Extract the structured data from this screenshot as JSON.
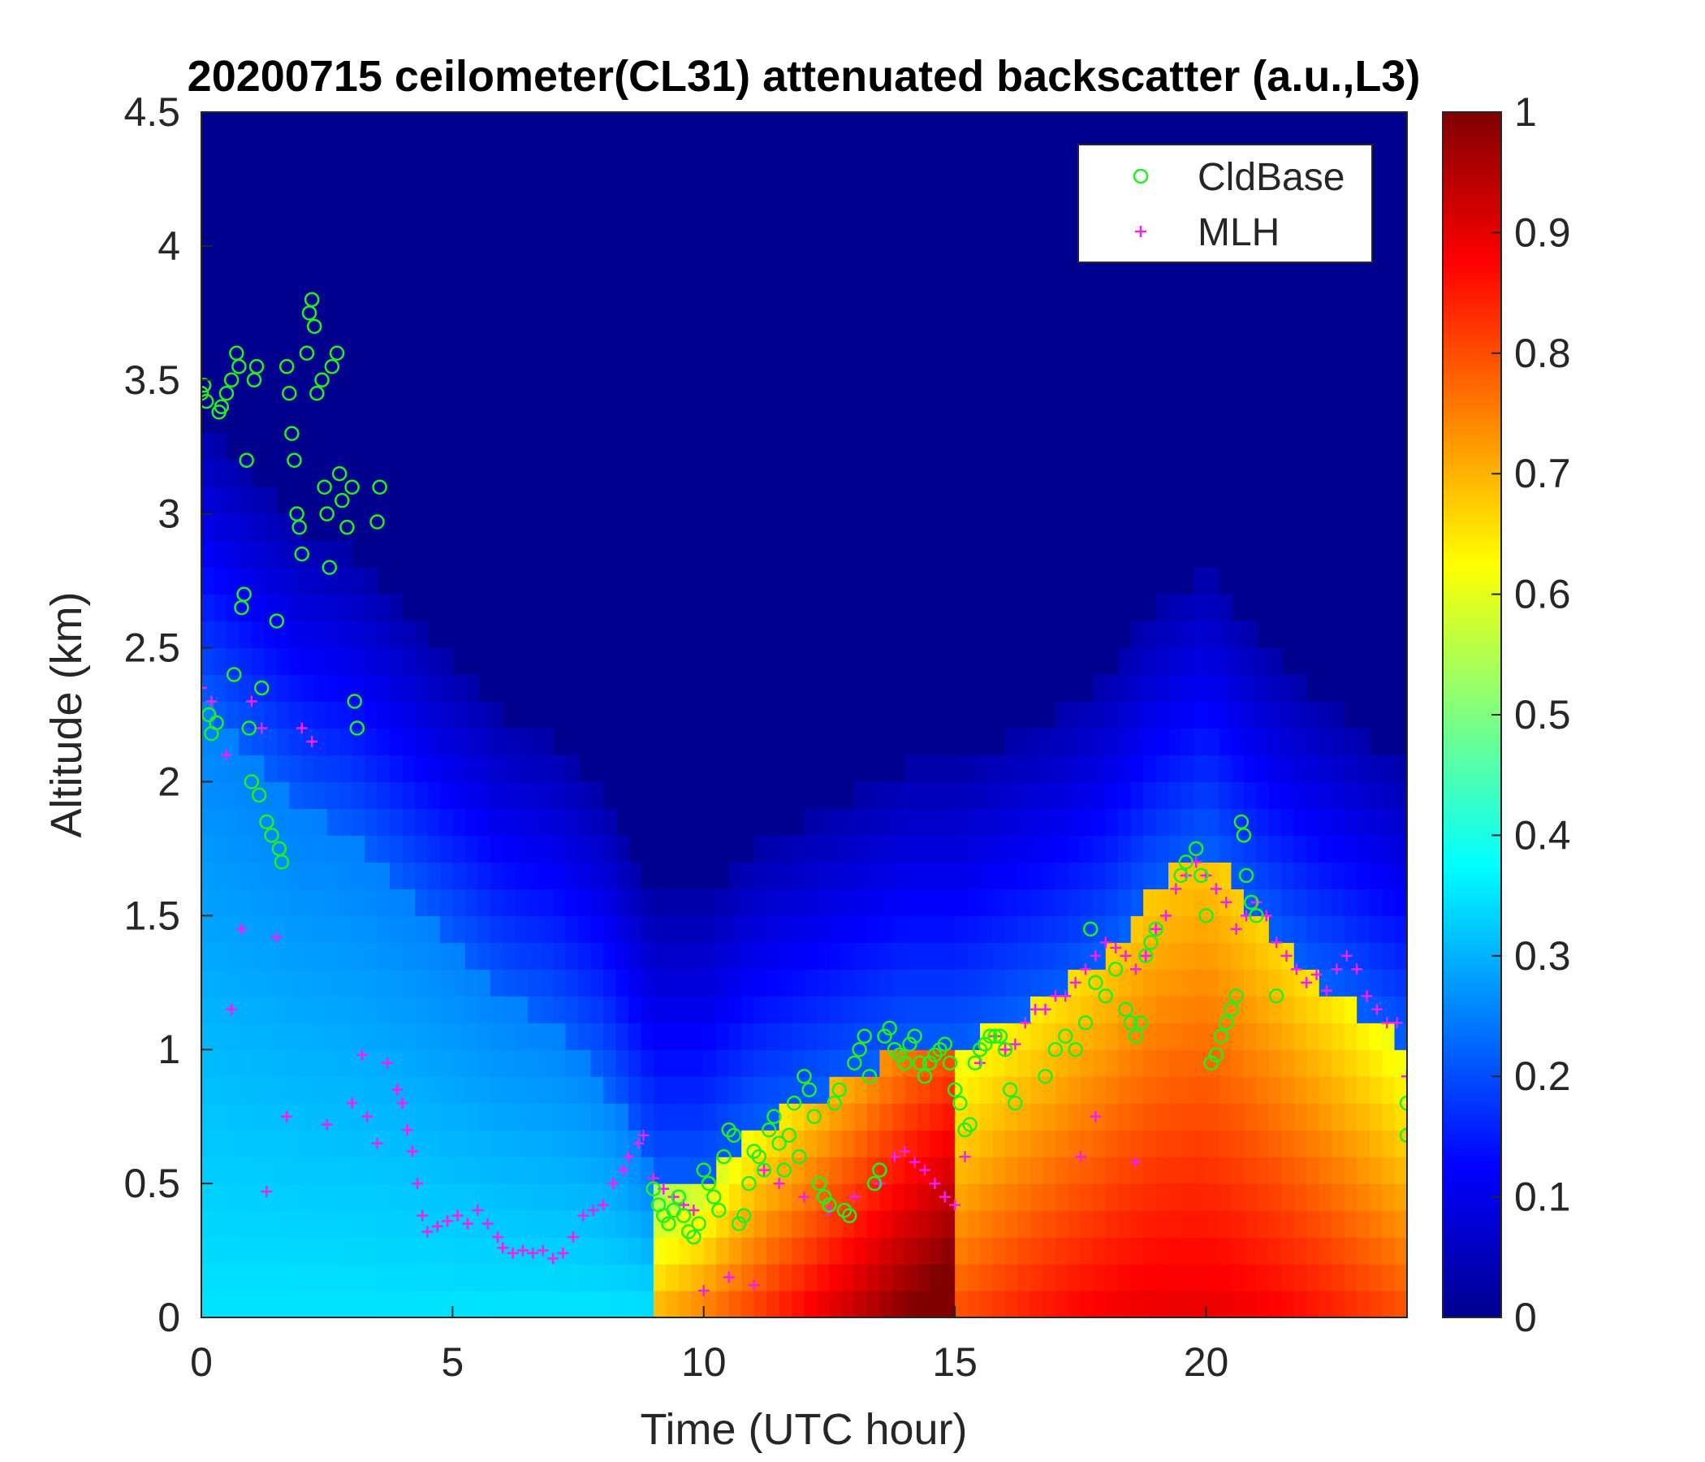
{
  "chart_data": {
    "type": "heatmap",
    "title": "20200715 ceilometer(CL31) attenuated backscatter (a.u.,L3)",
    "xlabel": "Time (UTC hour)",
    "ylabel": "Altitude (km)",
    "xlim": [
      0,
      24
    ],
    "ylim": [
      0,
      4.5
    ],
    "xticks": [
      0,
      5,
      10,
      15,
      20
    ],
    "yticks": [
      0,
      0.5,
      1,
      1.5,
      2,
      2.5,
      3,
      3.5,
      4,
      4.5
    ],
    "colorbar": {
      "colormap": "jet",
      "clim": [
        0,
        1
      ],
      "ticks": [
        0,
        0.1,
        0.2,
        0.3,
        0.4,
        0.5,
        0.6,
        0.7,
        0.8,
        0.9,
        1
      ]
    },
    "legend": {
      "placement": "top-right",
      "entries": [
        {
          "label": "CldBase",
          "marker": "circle",
          "color": "#22ee22"
        },
        {
          "label": "MLH",
          "marker": "plus",
          "color": "#ee22ee"
        }
      ]
    },
    "grid": false,
    "backscatter_profile_summary": {
      "layer_top_km_by_hour": [
        [
          0,
          2.3
        ],
        [
          1,
          2.1
        ],
        [
          2,
          1.9
        ],
        [
          3,
          1.8
        ],
        [
          4,
          1.6
        ],
        [
          5,
          1.4
        ],
        [
          6,
          1.2
        ],
        [
          7,
          1.1
        ],
        [
          8,
          0.9
        ],
        [
          9,
          0.5
        ],
        [
          10,
          0.5
        ],
        [
          11,
          0.7
        ],
        [
          12,
          0.8
        ],
        [
          13,
          0.9
        ],
        [
          14,
          1.0
        ],
        [
          15,
          1.0
        ],
        [
          16,
          1.1
        ],
        [
          17,
          1.2
        ],
        [
          18,
          1.35
        ],
        [
          19,
          1.6
        ],
        [
          20,
          1.75
        ],
        [
          21,
          1.5
        ],
        [
          22,
          1.3
        ],
        [
          23,
          1.15
        ],
        [
          24,
          1.0
        ]
      ]
    },
    "series": [
      {
        "name": "CldBase",
        "points": [
          [
            0.0,
            3.45
          ],
          [
            0.05,
            3.48
          ],
          [
            0.1,
            3.42
          ],
          [
            0.15,
            2.25
          ],
          [
            0.2,
            2.18
          ],
          [
            0.3,
            2.22
          ],
          [
            0.35,
            3.38
          ],
          [
            0.4,
            3.4
          ],
          [
            0.5,
            3.45
          ],
          [
            0.6,
            3.5
          ],
          [
            0.65,
            2.4
          ],
          [
            0.7,
            3.6
          ],
          [
            0.75,
            3.55
          ],
          [
            0.8,
            2.65
          ],
          [
            0.85,
            2.7
          ],
          [
            0.9,
            3.2
          ],
          [
            0.95,
            2.2
          ],
          [
            1.0,
            2.0
          ],
          [
            1.05,
            3.5
          ],
          [
            1.1,
            3.55
          ],
          [
            1.15,
            1.95
          ],
          [
            1.2,
            2.35
          ],
          [
            1.3,
            1.85
          ],
          [
            1.4,
            1.8
          ],
          [
            1.5,
            2.6
          ],
          [
            1.55,
            1.75
          ],
          [
            1.6,
            1.7
          ],
          [
            1.7,
            3.55
          ],
          [
            1.75,
            3.45
          ],
          [
            1.8,
            3.3
          ],
          [
            1.85,
            3.2
          ],
          [
            1.9,
            3.0
          ],
          [
            1.95,
            2.95
          ],
          [
            2.0,
            2.85
          ],
          [
            2.1,
            3.6
          ],
          [
            2.15,
            3.75
          ],
          [
            2.2,
            3.8
          ],
          [
            2.25,
            3.7
          ],
          [
            2.3,
            3.45
          ],
          [
            2.4,
            3.5
          ],
          [
            2.45,
            3.1
          ],
          [
            2.5,
            3.0
          ],
          [
            2.55,
            2.8
          ],
          [
            2.6,
            3.55
          ],
          [
            2.7,
            3.6
          ],
          [
            2.75,
            3.15
          ],
          [
            2.8,
            3.05
          ],
          [
            2.9,
            2.95
          ],
          [
            3.0,
            3.1
          ],
          [
            3.05,
            2.3
          ],
          [
            3.1,
            2.2
          ],
          [
            3.5,
            2.97
          ],
          [
            3.55,
            3.1
          ],
          [
            9.0,
            0.48
          ],
          [
            9.1,
            0.42
          ],
          [
            9.2,
            0.38
          ],
          [
            9.3,
            0.35
          ],
          [
            9.4,
            0.4
          ],
          [
            9.5,
            0.45
          ],
          [
            9.6,
            0.38
          ],
          [
            9.7,
            0.32
          ],
          [
            9.8,
            0.3
          ],
          [
            9.9,
            0.35
          ],
          [
            10.0,
            0.55
          ],
          [
            10.1,
            0.5
          ],
          [
            10.2,
            0.45
          ],
          [
            10.3,
            0.4
          ],
          [
            10.4,
            0.6
          ],
          [
            10.5,
            0.7
          ],
          [
            10.6,
            0.68
          ],
          [
            10.7,
            0.35
          ],
          [
            10.8,
            0.38
          ],
          [
            10.9,
            0.5
          ],
          [
            11.0,
            0.62
          ],
          [
            11.1,
            0.6
          ],
          [
            11.2,
            0.55
          ],
          [
            11.3,
            0.7
          ],
          [
            11.4,
            0.75
          ],
          [
            11.5,
            0.65
          ],
          [
            11.6,
            0.55
          ],
          [
            11.7,
            0.68
          ],
          [
            11.8,
            0.8
          ],
          [
            11.9,
            0.6
          ],
          [
            12.0,
            0.9
          ],
          [
            12.1,
            0.85
          ],
          [
            12.2,
            0.75
          ],
          [
            12.3,
            0.5
          ],
          [
            12.4,
            0.45
          ],
          [
            12.5,
            0.42
          ],
          [
            12.6,
            0.8
          ],
          [
            12.7,
            0.85
          ],
          [
            12.8,
            0.4
          ],
          [
            12.9,
            0.38
          ],
          [
            13.0,
            0.95
          ],
          [
            13.1,
            1.0
          ],
          [
            13.2,
            1.05
          ],
          [
            13.3,
            0.9
          ],
          [
            13.4,
            0.5
          ],
          [
            13.5,
            0.55
          ],
          [
            13.6,
            1.05
          ],
          [
            13.7,
            1.08
          ],
          [
            13.8,
            1.0
          ],
          [
            13.9,
            0.98
          ],
          [
            14.0,
            0.95
          ],
          [
            14.1,
            1.02
          ],
          [
            14.2,
            1.05
          ],
          [
            14.3,
            0.95
          ],
          [
            14.4,
            0.9
          ],
          [
            14.5,
            0.95
          ],
          [
            14.6,
            0.98
          ],
          [
            14.7,
            1.0
          ],
          [
            14.8,
            1.02
          ],
          [
            14.9,
            0.95
          ],
          [
            15.0,
            0.85
          ],
          [
            15.1,
            0.8
          ],
          [
            15.2,
            0.7
          ],
          [
            15.3,
            0.72
          ],
          [
            15.4,
            0.95
          ],
          [
            15.5,
            1.0
          ],
          [
            15.6,
            1.02
          ],
          [
            15.7,
            1.05
          ],
          [
            15.8,
            1.05
          ],
          [
            15.9,
            1.05
          ],
          [
            16.0,
            1.0
          ],
          [
            16.1,
            0.85
          ],
          [
            16.2,
            0.8
          ],
          [
            16.8,
            0.9
          ],
          [
            17.0,
            1.0
          ],
          [
            17.2,
            1.05
          ],
          [
            17.4,
            1.0
          ],
          [
            17.6,
            1.1
          ],
          [
            17.7,
            1.45
          ],
          [
            17.8,
            1.25
          ],
          [
            18.0,
            1.2
          ],
          [
            18.2,
            1.3
          ],
          [
            18.4,
            1.15
          ],
          [
            18.5,
            1.1
          ],
          [
            18.6,
            1.05
          ],
          [
            18.7,
            1.1
          ],
          [
            18.8,
            1.35
          ],
          [
            18.9,
            1.4
          ],
          [
            19.0,
            1.45
          ],
          [
            19.5,
            1.65
          ],
          [
            19.6,
            1.7
          ],
          [
            19.8,
            1.75
          ],
          [
            19.9,
            1.65
          ],
          [
            20.0,
            1.5
          ],
          [
            20.1,
            0.95
          ],
          [
            20.2,
            0.98
          ],
          [
            20.3,
            1.05
          ],
          [
            20.4,
            1.1
          ],
          [
            20.5,
            1.15
          ],
          [
            20.6,
            1.2
          ],
          [
            20.7,
            1.85
          ],
          [
            20.75,
            1.8
          ],
          [
            20.8,
            1.65
          ],
          [
            20.9,
            1.55
          ],
          [
            21.0,
            1.5
          ],
          [
            21.4,
            1.2
          ],
          [
            24.0,
            0.8
          ],
          [
            24.0,
            0.68
          ]
        ]
      },
      {
        "name": "MLH",
        "points": [
          [
            0.0,
            2.35
          ],
          [
            0.2,
            2.3
          ],
          [
            0.5,
            2.1
          ],
          [
            0.6,
            1.15
          ],
          [
            0.8,
            1.45
          ],
          [
            1.0,
            2.3
          ],
          [
            1.2,
            2.2
          ],
          [
            1.3,
            0.47
          ],
          [
            1.5,
            1.42
          ],
          [
            1.7,
            0.75
          ],
          [
            2.0,
            2.2
          ],
          [
            2.2,
            2.15
          ],
          [
            2.5,
            0.72
          ],
          [
            3.0,
            0.8
          ],
          [
            3.2,
            0.98
          ],
          [
            3.3,
            0.75
          ],
          [
            3.5,
            0.65
          ],
          [
            3.7,
            0.95
          ],
          [
            3.9,
            0.85
          ],
          [
            4.0,
            0.8
          ],
          [
            4.1,
            0.7
          ],
          [
            4.2,
            0.62
          ],
          [
            4.3,
            0.5
          ],
          [
            4.4,
            0.38
          ],
          [
            4.5,
            0.32
          ],
          [
            4.7,
            0.34
          ],
          [
            4.9,
            0.36
          ],
          [
            5.1,
            0.38
          ],
          [
            5.3,
            0.35
          ],
          [
            5.5,
            0.4
          ],
          [
            5.7,
            0.35
          ],
          [
            5.9,
            0.3
          ],
          [
            6.0,
            0.26
          ],
          [
            6.2,
            0.24
          ],
          [
            6.4,
            0.25
          ],
          [
            6.6,
            0.24
          ],
          [
            6.8,
            0.25
          ],
          [
            7.0,
            0.22
          ],
          [
            7.2,
            0.24
          ],
          [
            7.4,
            0.3
          ],
          [
            7.6,
            0.38
          ],
          [
            7.8,
            0.4
          ],
          [
            8.0,
            0.42
          ],
          [
            8.2,
            0.5
          ],
          [
            8.4,
            0.55
          ],
          [
            8.5,
            0.6
          ],
          [
            8.7,
            0.65
          ],
          [
            8.8,
            0.68
          ],
          [
            9.0,
            0.52
          ],
          [
            9.2,
            0.48
          ],
          [
            9.4,
            0.45
          ],
          [
            9.6,
            0.42
          ],
          [
            9.8,
            0.4
          ],
          [
            10.0,
            0.1
          ],
          [
            10.5,
            0.15
          ],
          [
            11.0,
            0.12
          ],
          [
            11.2,
            0.55
          ],
          [
            11.5,
            0.5
          ],
          [
            12.0,
            0.45
          ],
          [
            12.5,
            0.4
          ],
          [
            13.0,
            0.45
          ],
          [
            13.5,
            0.5
          ],
          [
            13.8,
            0.6
          ],
          [
            14.0,
            0.62
          ],
          [
            14.2,
            0.58
          ],
          [
            14.4,
            0.55
          ],
          [
            14.6,
            0.5
          ],
          [
            14.8,
            0.45
          ],
          [
            15.0,
            0.42
          ],
          [
            15.2,
            0.6
          ],
          [
            15.5,
            0.95
          ],
          [
            15.8,
            1.05
          ],
          [
            16.0,
            1.0
          ],
          [
            16.2,
            1.02
          ],
          [
            16.4,
            1.1
          ],
          [
            16.6,
            1.15
          ],
          [
            16.8,
            1.15
          ],
          [
            17.0,
            1.2
          ],
          [
            17.2,
            1.2
          ],
          [
            17.4,
            1.25
          ],
          [
            17.6,
            1.3
          ],
          [
            17.8,
            1.35
          ],
          [
            18.0,
            1.4
          ],
          [
            18.2,
            1.38
          ],
          [
            18.4,
            1.35
          ],
          [
            18.6,
            1.3
          ],
          [
            18.8,
            1.35
          ],
          [
            19.0,
            1.45
          ],
          [
            19.2,
            1.5
          ],
          [
            19.4,
            1.6
          ],
          [
            19.6,
            1.65
          ],
          [
            19.8,
            1.7
          ],
          [
            20.0,
            1.65
          ],
          [
            20.2,
            1.6
          ],
          [
            20.4,
            1.55
          ],
          [
            20.6,
            1.45
          ],
          [
            20.8,
            1.5
          ],
          [
            21.0,
            1.55
          ],
          [
            21.2,
            1.5
          ],
          [
            21.4,
            1.4
          ],
          [
            21.6,
            1.35
          ],
          [
            21.8,
            1.3
          ],
          [
            22.0,
            1.25
          ],
          [
            22.2,
            1.28
          ],
          [
            22.4,
            1.22
          ],
          [
            22.6,
            1.3
          ],
          [
            22.8,
            1.35
          ],
          [
            23.0,
            1.3
          ],
          [
            23.2,
            1.2
          ],
          [
            23.4,
            1.15
          ],
          [
            23.6,
            1.1
          ],
          [
            23.8,
            1.1
          ],
          [
            24.0,
            0.9
          ],
          [
            17.5,
            0.6
          ],
          [
            17.8,
            0.75
          ],
          [
            18.6,
            0.58
          ]
        ]
      }
    ]
  }
}
